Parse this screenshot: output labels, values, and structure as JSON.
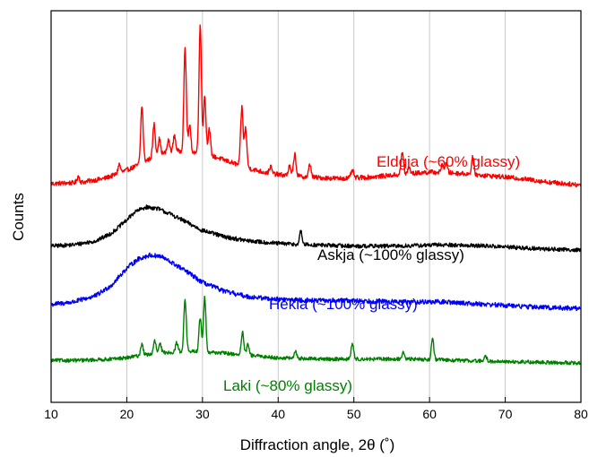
{
  "chart_data": {
    "type": "line",
    "xlabel": "Diffraction angle, 2θ (˚)",
    "ylabel": "Counts",
    "xlim": [
      10,
      80
    ],
    "x_ticks": [
      "10",
      "20",
      "30",
      "40",
      "50",
      "60",
      "70",
      "80"
    ],
    "grid": "vertical",
    "y_ticks_shown": false,
    "series": [
      {
        "name": "Eldgja (~60% glassy)",
        "color": "#ff0000",
        "offset": 1.35,
        "baseline_points": [
          [
            10,
            0.05
          ],
          [
            14,
            0.06
          ],
          [
            17,
            0.09
          ],
          [
            19,
            0.13
          ],
          [
            21,
            0.18
          ],
          [
            22,
            0.21
          ],
          [
            24,
            0.27
          ],
          [
            26,
            0.3
          ],
          [
            28,
            0.3
          ],
          [
            30,
            0.28
          ],
          [
            32,
            0.25
          ],
          [
            34,
            0.21
          ],
          [
            36,
            0.17
          ],
          [
            38,
            0.14
          ],
          [
            40,
            0.12
          ],
          [
            44,
            0.1
          ],
          [
            48,
            0.09
          ],
          [
            52,
            0.1
          ],
          [
            56,
            0.12
          ],
          [
            60,
            0.14
          ],
          [
            64,
            0.13
          ],
          [
            68,
            0.11
          ],
          [
            72,
            0.09
          ],
          [
            76,
            0.06
          ],
          [
            80,
            0.04
          ]
        ],
        "peaks": [
          [
            13.6,
            0.05
          ],
          [
            19.0,
            0.07
          ],
          [
            22.0,
            0.44
          ],
          [
            23.6,
            0.25
          ],
          [
            24.3,
            0.12
          ],
          [
            25.5,
            0.09
          ],
          [
            26.3,
            0.12
          ],
          [
            27.7,
            0.78
          ],
          [
            28.3,
            0.2
          ],
          [
            29.7,
            0.98
          ],
          [
            30.3,
            0.45
          ],
          [
            30.9,
            0.2
          ],
          [
            35.2,
            0.45
          ],
          [
            35.7,
            0.3
          ],
          [
            39.0,
            0.05
          ],
          [
            41.5,
            0.07
          ],
          [
            42.2,
            0.17
          ],
          [
            44.2,
            0.1
          ],
          [
            49.8,
            0.06
          ],
          [
            56.4,
            0.17
          ],
          [
            57.3,
            0.05
          ],
          [
            61.7,
            0.06
          ],
          [
            62.2,
            0.07
          ],
          [
            65.7,
            0.13
          ]
        ],
        "noise": 0.018
      },
      {
        "name": "Askja (~100% glassy)",
        "color": "#000000",
        "offset": 0.88,
        "baseline_points": [
          [
            10,
            0.04
          ],
          [
            13,
            0.05
          ],
          [
            16,
            0.08
          ],
          [
            18,
            0.14
          ],
          [
            20,
            0.24
          ],
          [
            21,
            0.3
          ],
          [
            22.5,
            0.34
          ],
          [
            24,
            0.33
          ],
          [
            26,
            0.28
          ],
          [
            28,
            0.22
          ],
          [
            30,
            0.16
          ],
          [
            33,
            0.11
          ],
          [
            36,
            0.08
          ],
          [
            40,
            0.06
          ],
          [
            44,
            0.05
          ],
          [
            50,
            0.04
          ],
          [
            56,
            0.04
          ],
          [
            62,
            0.05
          ],
          [
            68,
            0.04
          ],
          [
            74,
            0.02
          ],
          [
            80,
            0.01
          ]
        ],
        "peaks": [
          [
            43.0,
            0.1
          ]
        ],
        "noise": 0.016
      },
      {
        "name": "Hekla (~100% glassy)",
        "color": "#0000ff",
        "offset": 0.42,
        "baseline_points": [
          [
            10,
            0.05
          ],
          [
            13,
            0.07
          ],
          [
            16,
            0.12
          ],
          [
            18,
            0.2
          ],
          [
            20,
            0.33
          ],
          [
            21.5,
            0.4
          ],
          [
            23,
            0.43
          ],
          [
            24.5,
            0.42
          ],
          [
            26,
            0.37
          ],
          [
            28,
            0.3
          ],
          [
            30,
            0.22
          ],
          [
            33,
            0.15
          ],
          [
            36,
            0.11
          ],
          [
            40,
            0.09
          ],
          [
            45,
            0.08
          ],
          [
            50,
            0.08
          ],
          [
            56,
            0.07
          ],
          [
            62,
            0.07
          ],
          [
            68,
            0.05
          ],
          [
            74,
            0.03
          ],
          [
            80,
            0.02
          ]
        ],
        "peaks": [],
        "noise": 0.018
      },
      {
        "name": "Laki (~80% glassy)",
        "color": "#008000",
        "offset": 0.0,
        "baseline_points": [
          [
            10,
            0.04
          ],
          [
            14,
            0.04
          ],
          [
            18,
            0.05
          ],
          [
            20,
            0.06
          ],
          [
            22,
            0.08
          ],
          [
            25,
            0.1
          ],
          [
            28,
            0.11
          ],
          [
            32,
            0.1
          ],
          [
            36,
            0.08
          ],
          [
            40,
            0.06
          ],
          [
            46,
            0.05
          ],
          [
            52,
            0.05
          ],
          [
            58,
            0.05
          ],
          [
            64,
            0.04
          ],
          [
            70,
            0.03
          ],
          [
            80,
            0.02
          ]
        ],
        "peaks": [
          [
            22.0,
            0.09
          ],
          [
            23.7,
            0.1
          ],
          [
            24.4,
            0.07
          ],
          [
            26.6,
            0.07
          ],
          [
            27.7,
            0.4
          ],
          [
            29.7,
            0.26
          ],
          [
            30.3,
            0.42
          ],
          [
            35.3,
            0.17
          ],
          [
            36.0,
            0.08
          ],
          [
            42.3,
            0.05
          ],
          [
            49.8,
            0.12
          ],
          [
            56.5,
            0.05
          ],
          [
            60.4,
            0.16
          ],
          [
            67.4,
            0.04
          ]
        ],
        "noise": 0.014
      }
    ]
  }
}
